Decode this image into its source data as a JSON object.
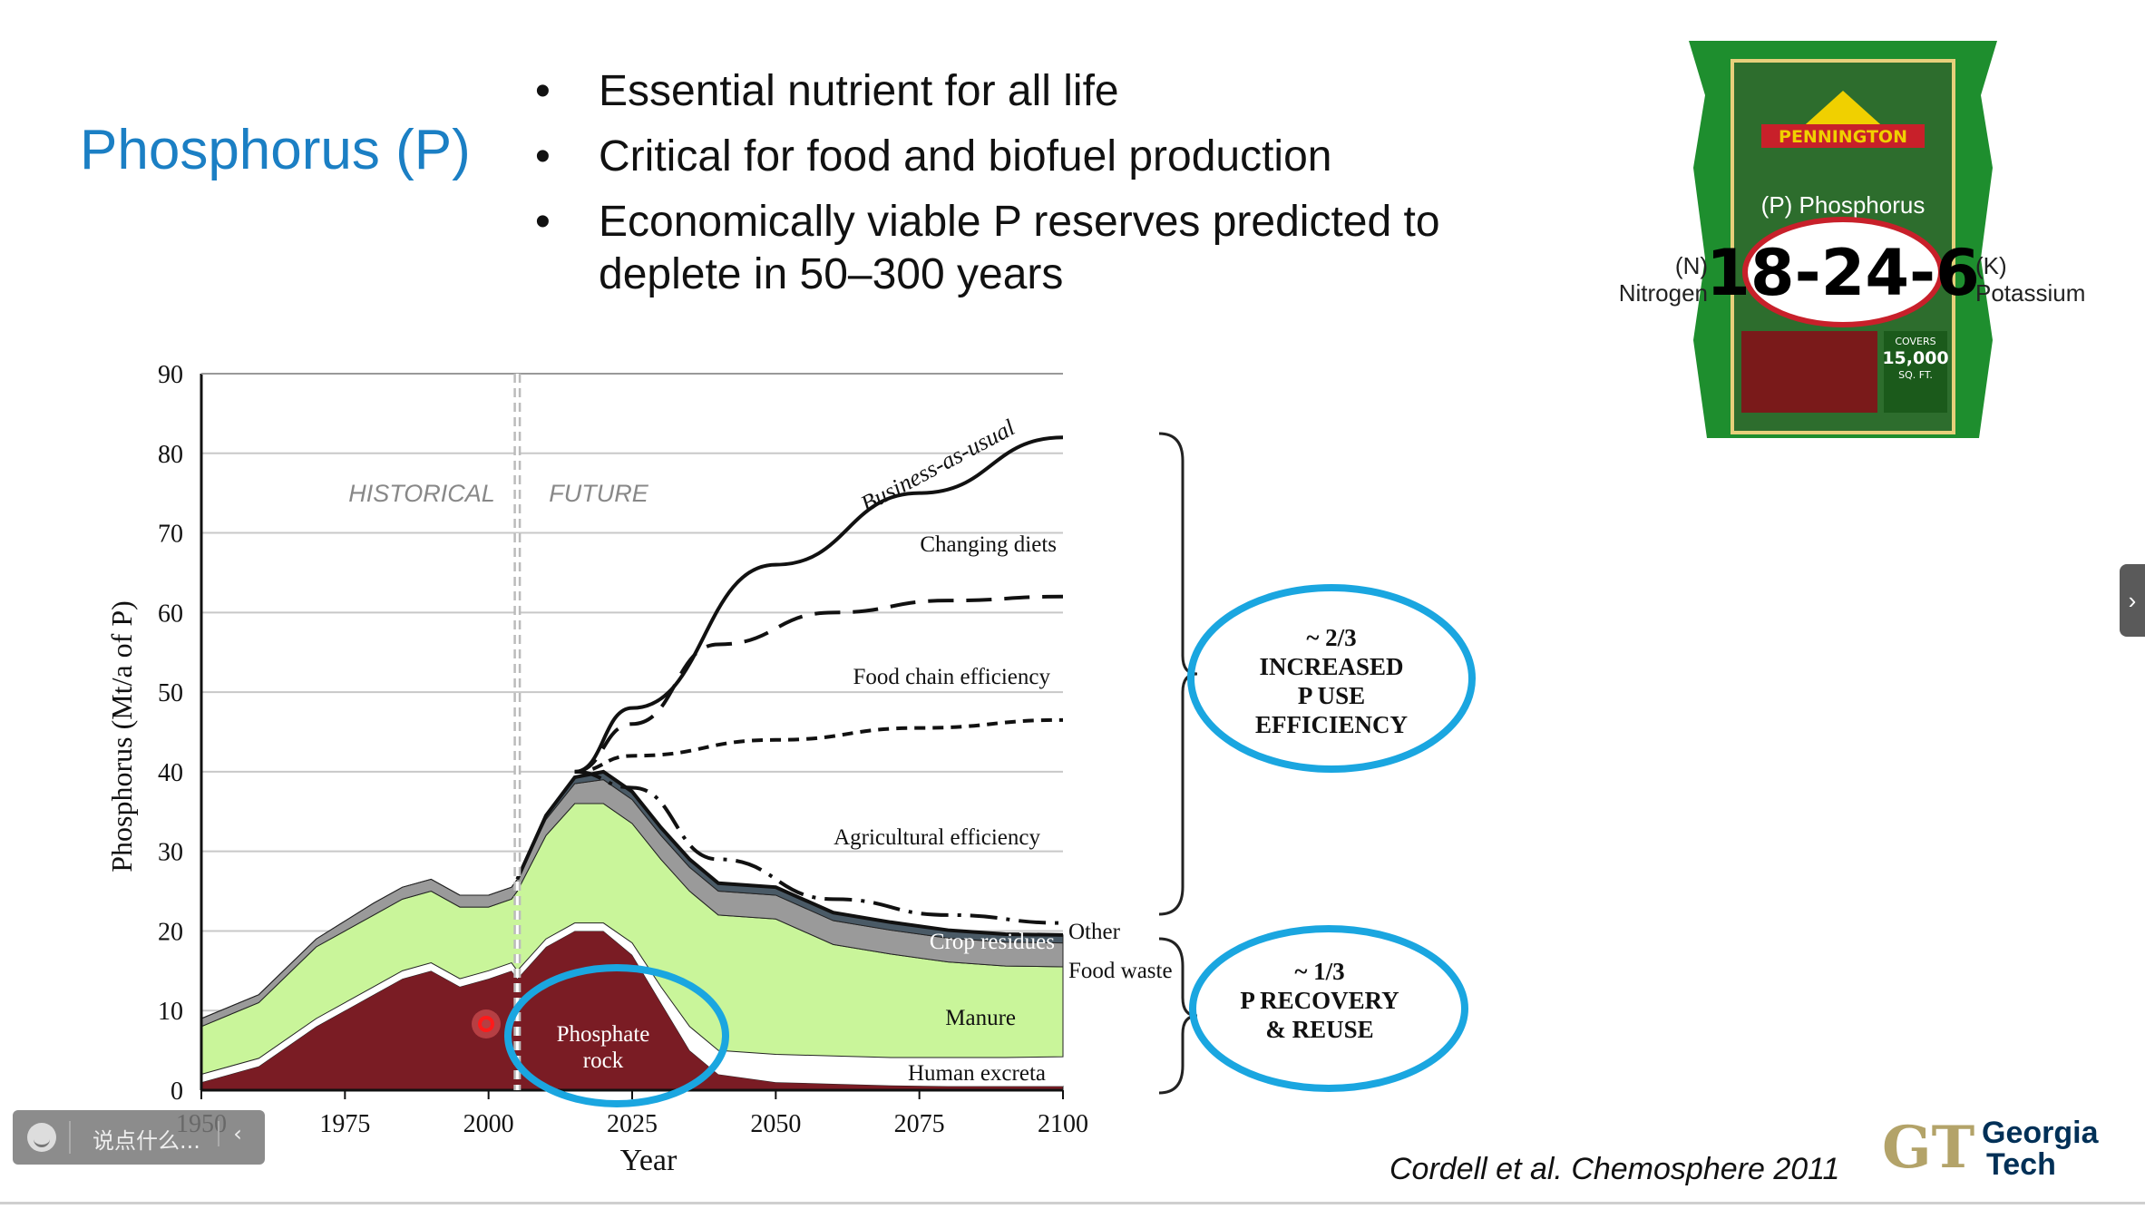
{
  "slide": {
    "title": "Phosphorus (P)",
    "bullets": [
      "Essential nutrient for all life",
      "Critical for food and biofuel production",
      "Economically viable P reserves predicted to deplete in 50–300 years"
    ],
    "citation": "Cordell et al. Chemosphere 2011"
  },
  "bag": {
    "brand": "PENNINGTON",
    "number": "18-24-6",
    "phosphorus_label": "(P) Phosphorus",
    "nitrogen_label": "(N) Nitrogen",
    "potassium_label": "(K) Potassium",
    "coverage_label": "COVERS",
    "coverage_value": "15,000",
    "coverage_unit": "SQ. FT."
  },
  "logo": {
    "line1": "Georgia",
    "line2": "Tech",
    "mark": "GT"
  },
  "overlay": {
    "comment_placeholder": "说点什么...",
    "collapse_glyph": "‹",
    "side_glyph": "›"
  },
  "chart_data": {
    "type": "area",
    "xlabel": "Year",
    "ylabel": "Phosphorus  (Mt/a of P)",
    "xlim": [
      1950,
      2100
    ],
    "ylim": [
      0,
      90
    ],
    "x_ticks": [
      1950,
      1975,
      2000,
      2025,
      2050,
      2075,
      2100
    ],
    "y_ticks": [
      0,
      10,
      20,
      30,
      40,
      50,
      60,
      70,
      80,
      90
    ],
    "grid": "horizontal",
    "divider_year": 2005,
    "region_labels": [
      "HISTORICAL",
      "FUTURE"
    ],
    "x": [
      1950,
      1960,
      1970,
      1980,
      1985,
      1990,
      1995,
      2000,
      2004,
      2005,
      2010,
      2015,
      2020,
      2025,
      2030,
      2035,
      2040,
      2050,
      2060,
      2070,
      2080,
      2090,
      2100
    ],
    "series": [
      {
        "name": "Phosphate rock",
        "color": "#7a1c24",
        "values": [
          1,
          3,
          8,
          12,
          14,
          15,
          13,
          14,
          15,
          14,
          18,
          20,
          20,
          17,
          11,
          5,
          2,
          1,
          0.8,
          0.6,
          0.5,
          0.5,
          0.5
        ]
      },
      {
        "name": "Human excreta",
        "color": "#ffffff",
        "values": [
          1,
          1,
          1,
          1,
          1,
          1,
          1,
          1,
          1,
          1,
          1,
          1,
          1,
          1.5,
          2,
          3,
          3,
          3.5,
          3.5,
          3.5,
          3.6,
          3.6,
          3.7
        ]
      },
      {
        "name": "Manure",
        "color": "#c9f59a",
        "values": [
          6,
          7,
          9,
          9,
          9,
          9,
          9,
          8,
          8,
          10,
          13,
          15,
          15,
          15,
          16,
          17,
          17,
          17,
          14,
          13,
          12,
          11.5,
          11.3
        ]
      },
      {
        "name": "Crop residues",
        "color": "#9a9a9a",
        "values": [
          1,
          1,
          1,
          1.5,
          1.5,
          1.5,
          1.5,
          1.5,
          1.5,
          1.5,
          2,
          2.5,
          3,
          3,
          3,
          3,
          3,
          3,
          3,
          3,
          3,
          3,
          3
        ]
      },
      {
        "name": "Food waste",
        "color": "#4a5a66",
        "values": [
          0,
          0,
          0,
          0,
          0,
          0,
          0,
          0,
          0,
          0,
          0.5,
          0.8,
          1,
          1,
          1,
          1,
          1,
          1,
          1,
          1,
          1,
          1,
          1
        ]
      }
    ],
    "scenarios": [
      {
        "name": "Business-as-usual",
        "style": "solid",
        "x": [
          2015,
          2025,
          2050,
          2075,
          2100
        ],
        "values": [
          40,
          48,
          66,
          75,
          82
        ]
      },
      {
        "name": "Changing diets",
        "style": "dashed",
        "x": [
          2015,
          2025,
          2040,
          2060,
          2080,
          2100
        ],
        "values": [
          40,
          46,
          56,
          60,
          61.5,
          62
        ]
      },
      {
        "name": "Food chain efficiency",
        "style": "short-dashed",
        "x": [
          2015,
          2025,
          2050,
          2075,
          2100
        ],
        "values": [
          40,
          42,
          44,
          45.5,
          46.5
        ]
      },
      {
        "name": "Agricultural efficiency",
        "style": "dash-dot",
        "x": [
          2015,
          2025,
          2040,
          2060,
          2080,
          2100
        ],
        "values": [
          40,
          38,
          29,
          24,
          22,
          21
        ]
      }
    ],
    "annotations": [
      "Business-as-usual",
      "Changing diets",
      "Food chain efficiency",
      "Agricultural efficiency",
      "Other",
      "Crop residues",
      "Food waste",
      "Manure",
      "Human excreta",
      "Phosphate rock"
    ],
    "callouts": [
      {
        "lines": [
          "~ 2/3",
          "INCREASED",
          "P USE",
          "EFFICIENCY"
        ]
      },
      {
        "lines": [
          "~ 1/3",
          "P  RECOVERY",
          "& REUSE"
        ]
      }
    ]
  }
}
